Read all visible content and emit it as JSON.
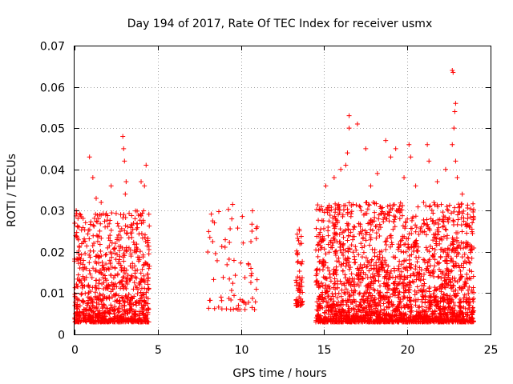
{
  "chart_data": {
    "type": "scatter",
    "title": "Day 194 of 2017, Rate Of TEC Index for receiver usmx",
    "xlabel": "GPS time / hours",
    "ylabel": "ROTI / TECUs",
    "xlim": [
      0,
      25
    ],
    "ylim": [
      0,
      0.07
    ],
    "xticks": [
      0,
      5,
      10,
      15,
      20,
      25
    ],
    "xtick_labels": [
      "0",
      "5",
      "10",
      "15",
      "20",
      "25"
    ],
    "yticks": [
      0,
      0.01,
      0.02,
      0.03,
      0.04,
      0.05,
      0.06,
      0.07
    ],
    "ytick_labels": [
      "0",
      "0.01",
      "0.02",
      "0.03",
      "0.04",
      "0.05",
      "0.06",
      "0.07"
    ],
    "grid": true,
    "marker": "+",
    "color": "#ff0000",
    "series": [
      {
        "name": "ROTI",
        "clusters": [
          {
            "x_range": [
              0.0,
              4.5
            ],
            "y_range": [
              0.003,
              0.03
            ],
            "count": 900
          },
          {
            "x_range": [
              8.0,
              11.0
            ],
            "y_range": [
              0.006,
              0.031
            ],
            "count": 70
          },
          {
            "x_range": [
              13.3,
              13.7
            ],
            "y_range": [
              0.007,
              0.026
            ],
            "count": 60
          },
          {
            "x_range": [
              14.5,
              24.0
            ],
            "y_range": [
              0.003,
              0.032
            ],
            "count": 2200
          }
        ],
        "outliers": [
          {
            "x": 0.9,
            "y": 0.043
          },
          {
            "x": 1.1,
            "y": 0.038
          },
          {
            "x": 1.3,
            "y": 0.033
          },
          {
            "x": 2.2,
            "y": 0.036
          },
          {
            "x": 2.9,
            "y": 0.048
          },
          {
            "x": 2.95,
            "y": 0.045
          },
          {
            "x": 3.0,
            "y": 0.042
          },
          {
            "x": 3.1,
            "y": 0.037
          },
          {
            "x": 3.05,
            "y": 0.034
          },
          {
            "x": 4.0,
            "y": 0.037
          },
          {
            "x": 4.2,
            "y": 0.036
          },
          {
            "x": 4.3,
            "y": 0.041
          },
          {
            "x": 8.3,
            "y": 0.0275
          },
          {
            "x": 8.3,
            "y": 0.0225
          },
          {
            "x": 9.5,
            "y": 0.0315
          },
          {
            "x": 9.45,
            "y": 0.028
          },
          {
            "x": 10.6,
            "y": 0.0225
          },
          {
            "x": 10.6,
            "y": 0.016
          },
          {
            "x": 16.5,
            "y": 0.053
          },
          {
            "x": 16.5,
            "y": 0.05
          },
          {
            "x": 16.4,
            "y": 0.044
          },
          {
            "x": 16.3,
            "y": 0.041
          },
          {
            "x": 17.0,
            "y": 0.051
          },
          {
            "x": 17.5,
            "y": 0.045
          },
          {
            "x": 18.7,
            "y": 0.047
          },
          {
            "x": 19.0,
            "y": 0.043
          },
          {
            "x": 19.3,
            "y": 0.045
          },
          {
            "x": 20.1,
            "y": 0.046
          },
          {
            "x": 20.2,
            "y": 0.043
          },
          {
            "x": 21.2,
            "y": 0.046
          },
          {
            "x": 21.3,
            "y": 0.042
          },
          {
            "x": 22.3,
            "y": 0.04
          },
          {
            "x": 22.7,
            "y": 0.064
          },
          {
            "x": 22.75,
            "y": 0.0635
          },
          {
            "x": 22.9,
            "y": 0.056
          },
          {
            "x": 22.85,
            "y": 0.054
          },
          {
            "x": 22.8,
            "y": 0.05
          },
          {
            "x": 22.7,
            "y": 0.046
          },
          {
            "x": 22.9,
            "y": 0.042
          },
          {
            "x": 23.0,
            "y": 0.038
          },
          {
            "x": 15.1,
            "y": 0.036
          },
          {
            "x": 15.6,
            "y": 0.038
          },
          {
            "x": 16.0,
            "y": 0.04
          },
          {
            "x": 17.8,
            "y": 0.036
          },
          {
            "x": 18.2,
            "y": 0.039
          },
          {
            "x": 19.8,
            "y": 0.038
          },
          {
            "x": 20.5,
            "y": 0.036
          },
          {
            "x": 21.8,
            "y": 0.037
          },
          {
            "x": 23.3,
            "y": 0.034
          },
          {
            "x": 0.1,
            "y": 0.03
          },
          {
            "x": 0.4,
            "y": 0.0285
          },
          {
            "x": 1.6,
            "y": 0.032
          },
          {
            "x": 13.5,
            "y": 0.0255
          }
        ]
      }
    ]
  }
}
